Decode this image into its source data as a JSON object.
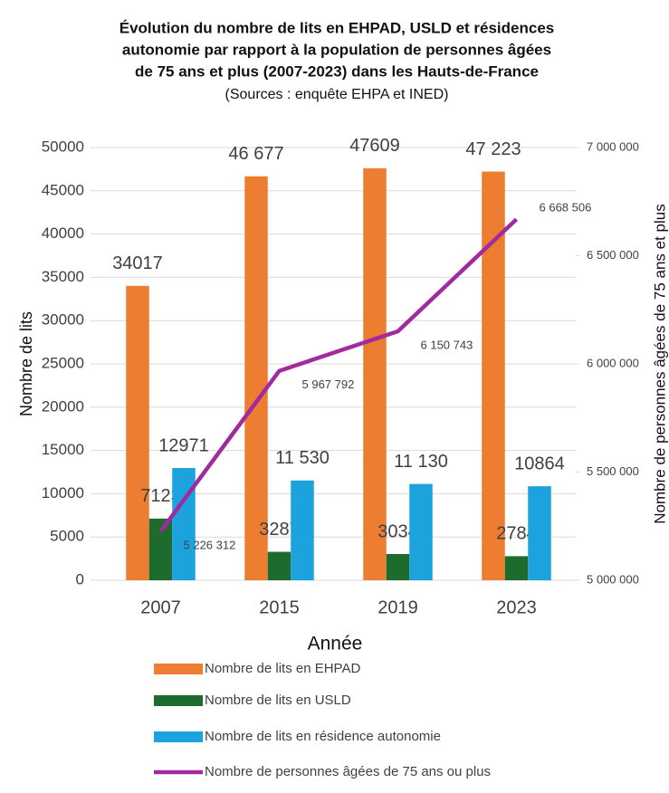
{
  "chart_data": {
    "type": "bar",
    "title": [
      "Évolution du nombre de lits en EHPAD, USLD et résidences",
      "autonomie par rapport à la population de personnes âgées",
      "de 75 ans et plus (2007-2023) dans les Hauts-de-France"
    ],
    "subtitle": "(Sources : enquête EHPA et INED)",
    "x_label": "Année",
    "y_label": "Nombre de lits",
    "y2_label": "Nombre de personnes âgées de 75 ans et plus",
    "categories": [
      "2007",
      "2015",
      "2019",
      "2023"
    ],
    "series": [
      {
        "name": "Nombre de lits en EHPAD",
        "color": "#ed7d31",
        "values": [
          34017,
          46677,
          47609,
          47223
        ],
        "value_labels": [
          "34017",
          "46 677",
          "47609",
          "47 223"
        ]
      },
      {
        "name": "Nombre de lits en USLD",
        "color": "#1e6b2e",
        "values": [
          7123,
          3287,
          3034,
          2784
        ]
      },
      {
        "name": "Nombre de lits en résidence autonomie",
        "color": "#1ca3de",
        "values": [
          12971,
          11530,
          11130,
          10864
        ],
        "value_labels": [
          "12971",
          "11 530",
          "11 130",
          "10864"
        ]
      },
      {
        "name": "Nombre de personnes âgées de 75 ans ou plus",
        "color": "#a12b9e",
        "type": "line",
        "axis": "y2",
        "values": [
          5226312,
          5967792,
          6150743,
          6668506
        ],
        "value_labels": [
          "5 226 312",
          "5 967 792",
          "6 150 743",
          "6 668 506"
        ]
      }
    ],
    "ylim": [
      0,
      50000
    ],
    "yticks": [
      0,
      5000,
      10000,
      15000,
      20000,
      25000,
      30000,
      35000,
      40000,
      45000,
      50000
    ],
    "y2lim": [
      5000000,
      7000000
    ],
    "y2ticks": [
      {
        "value": 5000000,
        "label": "5 000 000"
      },
      {
        "value": 5500000,
        "label": "5 500 000"
      },
      {
        "value": 6000000,
        "label": "6 000 000"
      },
      {
        "value": 6500000,
        "label": "6 500 000"
      },
      {
        "value": 7000000,
        "label": "7 000 000"
      }
    ],
    "grid": true,
    "legend": "bottom"
  }
}
